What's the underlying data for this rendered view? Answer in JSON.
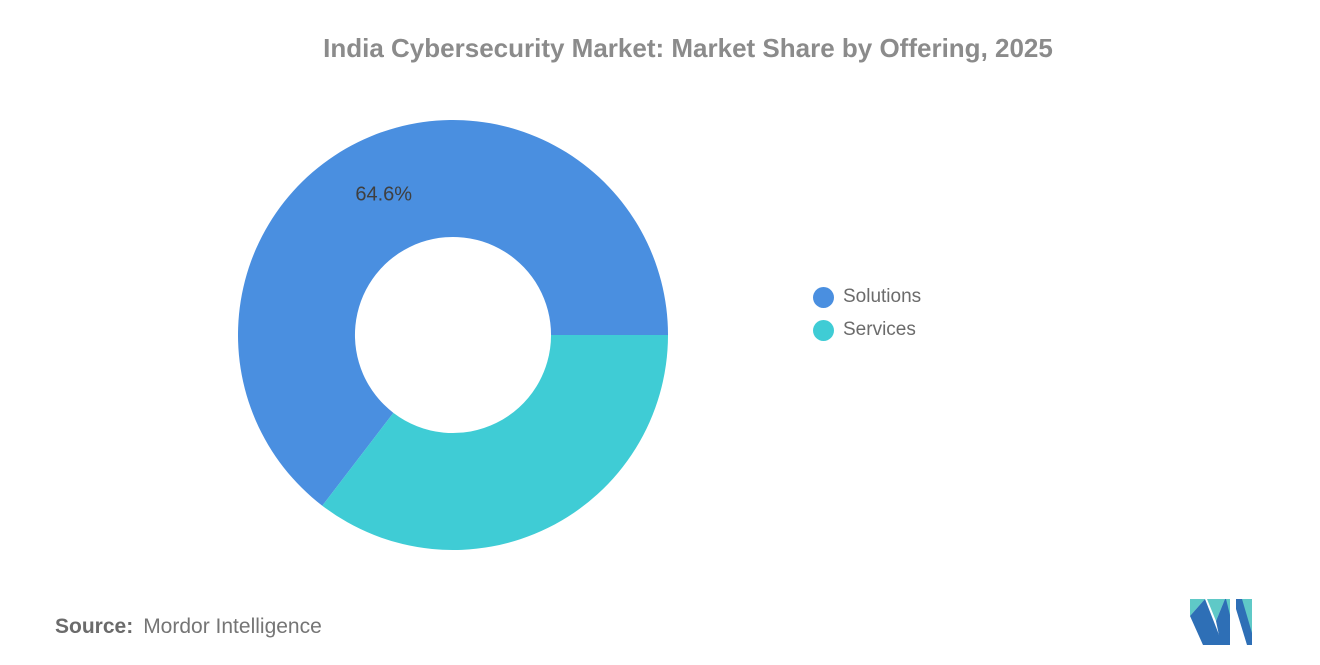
{
  "title": "India Cybersecurity Market: Market Share by Offering, 2025",
  "chart_data": {
    "type": "pie",
    "subtype": "donut",
    "title": "India Cybersecurity Market: Market Share by Offering, 2025",
    "units": "percent",
    "start_angle_deg_math": 0,
    "direction": "counterclockwise",
    "inner_radius_ratio": 0.456,
    "legend_position": "right",
    "slices": [
      {
        "label": "Solutions",
        "value": 64.6,
        "color": "#4A8FE0",
        "data_label": "64.6%"
      },
      {
        "label": "Services",
        "value": 35.4,
        "color": "#3FCCD5",
        "data_label": ""
      }
    ]
  },
  "source": {
    "label": "Source:",
    "value": "Mordor Intelligence"
  },
  "logo": {
    "alt": "Mordor Intelligence logo",
    "teal": "#5FC9C7",
    "blue": "#2E6FB6"
  },
  "colors": {
    "background": "#FFFFFF",
    "title_text": "#8B8B8B",
    "legend_text": "#6B6B6B",
    "data_label_text": "#3F3F3F",
    "source_text": "#757575"
  }
}
